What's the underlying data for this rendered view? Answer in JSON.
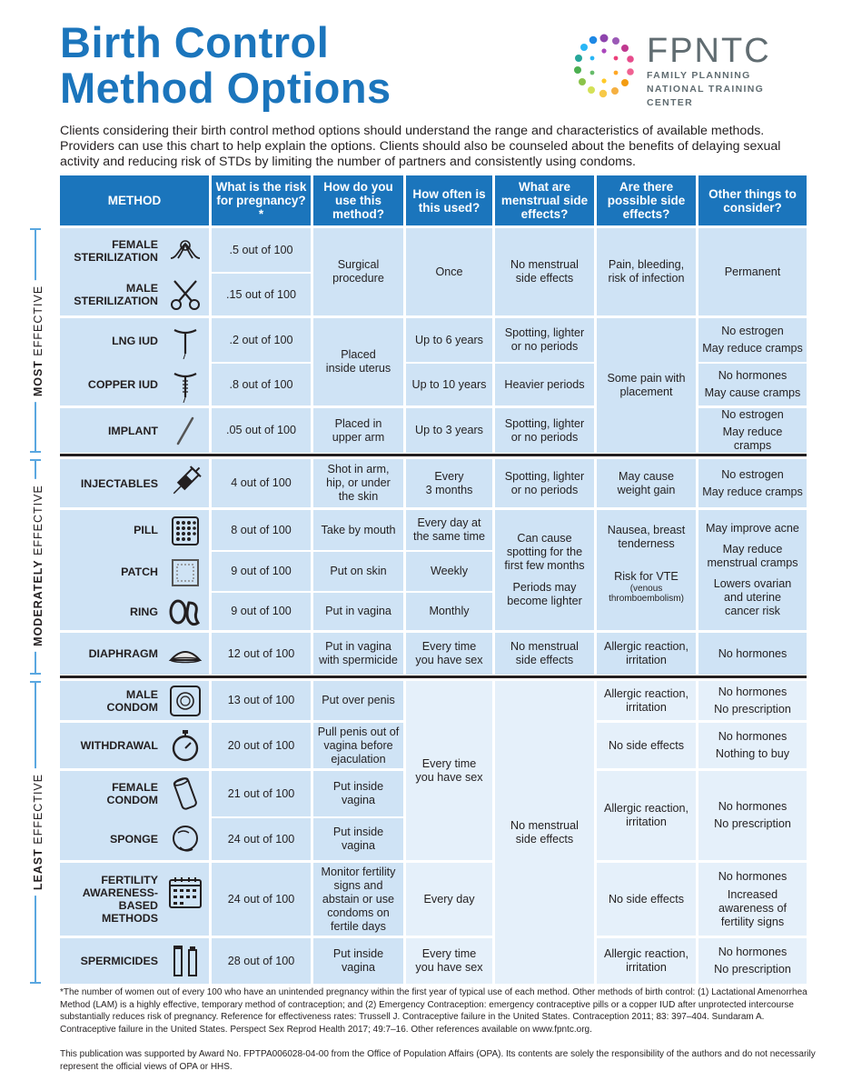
{
  "title_line1": "Birth Control",
  "title_line2": "Method Options",
  "logo": {
    "name": "FPNTC",
    "sub1": "FAMILY PLANNING",
    "sub2": "NATIONAL TRAINING CENTER"
  },
  "intro": "Clients considering their birth control method options should understand the range and characteristics of available methods. Providers can use this chart to help explain the options. Clients should also be counseled about the benefits of delaying sexual activity and reducing risk of STDs by limiting the number of partners and consistently using condoms.",
  "headers": [
    "METHOD",
    "What is the risk for pregnancy?*",
    "How do you use this method?",
    "How often is this used?",
    "What are menstrual side effects?",
    "Are there possible side effects?",
    "Other things to consider?"
  ],
  "side": {
    "most_a": "MOST",
    "most_b": "EFFECTIVE",
    "mod_a": "MODERATELY",
    "mod_b": "EFFECTIVE",
    "least_a": "LEAST",
    "least_b": "EFFECTIVE"
  },
  "methods": [
    {
      "name": "FEMALE\nSTERILIZATION",
      "risk": ".5 out of 100",
      "icon": "tubal-loop-icon"
    },
    {
      "name": "MALE\nSTERILIZATION",
      "risk": ".15 out of 100",
      "icon": "scissors-icon"
    },
    {
      "name": "LNG IUD",
      "risk": ".2 out of 100",
      "icon": "iud-icon"
    },
    {
      "name": "COPPER IUD",
      "risk": ".8 out of 100",
      "icon": "copper-iud-icon"
    },
    {
      "name": "IMPLANT",
      "risk": ".05 out of 100",
      "icon": "implant-rod-icon"
    },
    {
      "name": "INJECTABLES",
      "risk": "4 out of 100",
      "icon": "syringe-icon"
    },
    {
      "name": "PILL",
      "risk": "8 out of 100",
      "icon": "pill-pack-icon"
    },
    {
      "name": "PATCH",
      "risk": "9 out of 100",
      "icon": "patch-icon"
    },
    {
      "name": "RING",
      "risk": "9 out of 100",
      "icon": "ring-icon"
    },
    {
      "name": "DIAPHRAGM",
      "risk": "12 out of 100",
      "icon": "diaphragm-icon"
    },
    {
      "name": "MALE\nCONDOM",
      "risk": "13 out of 100",
      "icon": "condom-icon"
    },
    {
      "name": "WITHDRAWAL",
      "risk": "20 out of 100",
      "icon": "stopwatch-icon"
    },
    {
      "name": "FEMALE\nCONDOM",
      "risk": "21 out of 100",
      "icon": "female-condom-icon"
    },
    {
      "name": "SPONGE",
      "risk": "24 out of 100",
      "icon": "sponge-icon"
    },
    {
      "name": "FERTILITY\nAWARENESS-\nBASED METHODS",
      "risk": "24 out of 100",
      "icon": "calendar-icon"
    },
    {
      "name": "SPERMICIDES",
      "risk": "28 out of 100",
      "icon": "spermicide-tube-icon"
    }
  ],
  "use": {
    "surgical": "Surgical\nprocedure",
    "uterus": "Placed\ninside uterus",
    "implant": "Placed in\nupper arm",
    "inject": "Shot in arm,\nhip, or under\nthe skin",
    "pill": "Take by mouth",
    "patch": "Put on skin",
    "ring": "Put in vagina",
    "diaphragm": "Put in vagina\nwith spermicide",
    "condom": "Put over penis",
    "withdrawal": "Pull penis out of\nvagina before\nejaculation",
    "fcondom": "Put inside\nvagina",
    "sponge": "Put inside\nvagina",
    "fam": "Monitor fertility\nsigns and\nabstain or use\ncondoms on\nfertile days",
    "spermicide": "Put inside\nvagina"
  },
  "often": {
    "once": "Once",
    "lng": "Up to 6 years",
    "copper": "Up to 10 years",
    "implant": "Up to 3 years",
    "inject": "Every\n3 months",
    "pill": "Every day at\nthe same time",
    "patch": "Weekly",
    "ring": "Monthly",
    "diaphragm": "Every time\nyou have sex",
    "least": "Every time\nyou have sex",
    "fam": "Every day",
    "spermicide": "Every time\nyou have sex"
  },
  "menstrual": {
    "steril": "No menstrual\nside effects",
    "lng": "Spotting, lighter\nor no periods",
    "copper": "Heavier periods",
    "implant": "Spotting, lighter\nor no periods",
    "inject": "Spotting, lighter\nor no periods",
    "hormonal_a": "Can cause\nspotting for the\nfirst few months",
    "hormonal_b": "Periods may\nbecome lighter",
    "diaphragm": "No menstrual\nside effects",
    "least": "No menstrual\nside effects"
  },
  "side_effects": {
    "steril": "Pain, bleeding,\nrisk of infection",
    "iud": "Some pain with\nplacement",
    "inject": "May cause\nweight gain",
    "hormonal_a": "Nausea, breast\ntenderness",
    "hormonal_b": "Risk for VTE",
    "hormonal_c": "(venous\nthromboembolism)",
    "diaphragm": "Allergic reaction,\nirritation",
    "condom": "Allergic reaction,\nirritation",
    "withdrawal": "No side effects",
    "fc_sponge": "Allergic reaction,\nirritation",
    "fam": "No side effects",
    "spermicide": "Allergic reaction,\nirritation"
  },
  "other": {
    "steril": "Permanent",
    "lng_a": "No estrogen",
    "lng_b": "May reduce cramps",
    "copper_a": "No hormones",
    "copper_b": "May cause cramps",
    "implant_a": "No estrogen",
    "implant_b": "May reduce\ncramps",
    "inject_a": "No estrogen",
    "inject_b": "May reduce cramps",
    "hormonal_a": "May improve acne",
    "hormonal_b": "May reduce\nmenstrual cramps",
    "hormonal_c": "Lowers ovarian\nand uterine\ncancer risk",
    "diaphragm": "No hormones",
    "condom_a": "No hormones",
    "condom_b": "No prescription",
    "withdrawal_a": "No hormones",
    "withdrawal_b": "Nothing to buy",
    "fc_a": "No hormones",
    "fc_b": "No prescription",
    "fam_a": "No hormones",
    "fam_b": "Increased\nawareness of\nfertility signs",
    "sperm_a": "No hormones",
    "sperm_b": "No prescription"
  },
  "footnote": "*The number of women out of every 100 who have an unintended pregnancy within the first year of typical use of each method. Other methods of birth control: (1) Lactational Amenorrhea Method (LAM) is a highly effective, temporary method of contraception; and (2) Emergency Contraception: emergency contraceptive pills or a copper IUD after unprotected intercourse substantially reduces risk of pregnancy. Reference for effectiveness rates: Trussell J. Contraceptive failure in the United States. Contraception 2011; 83: 397–404. Sundaram A. Contraceptive failure in the United States. Perspect Sex Reprod Health 2017; 49:7–16. Other references available on www.fpntc.org.",
  "support": "This publication was supported by Award No. FPTPA006028-04-00 from the Office of Population Affairs (OPA). Its contents are solely the responsibility of the authors and do not necessarily represent the official views of OPA or HHS.",
  "colors": {
    "header_blue": "#1b75bc",
    "cell_blue": "#cfe3f5",
    "cell_light": "#e5f0fa",
    "bracket": "#5aa7e0"
  }
}
